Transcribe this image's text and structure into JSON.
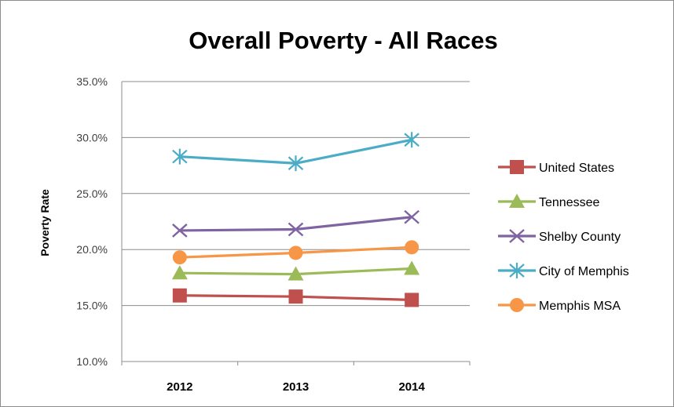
{
  "chart_data": {
    "type": "line",
    "title": "Overall Poverty - All Races",
    "ylabel": "Poverty Rate",
    "xlabel": "",
    "categories": [
      "2012",
      "2013",
      "2014"
    ],
    "ylim": [
      10.0,
      35.0
    ],
    "yticks": [
      "10.0%",
      "15.0%",
      "20.0%",
      "25.0%",
      "30.0%",
      "35.0%"
    ],
    "grid": "horizontal",
    "legend_position": "right",
    "series": [
      {
        "name": "United States",
        "values": [
          15.9,
          15.8,
          15.5
        ],
        "color": "#c0504d",
        "marker": "square"
      },
      {
        "name": "Tennessee",
        "values": [
          17.9,
          17.8,
          18.3
        ],
        "color": "#9bbb59",
        "marker": "triangle"
      },
      {
        "name": "Shelby County",
        "values": [
          21.7,
          21.8,
          22.9
        ],
        "color": "#8064a2",
        "marker": "x"
      },
      {
        "name": "City of Memphis",
        "values": [
          28.3,
          27.7,
          29.8
        ],
        "color": "#4bacc6",
        "marker": "star"
      },
      {
        "name": "Memphis MSA",
        "values": [
          19.3,
          19.7,
          20.2
        ],
        "color": "#f79646",
        "marker": "circle"
      }
    ]
  }
}
